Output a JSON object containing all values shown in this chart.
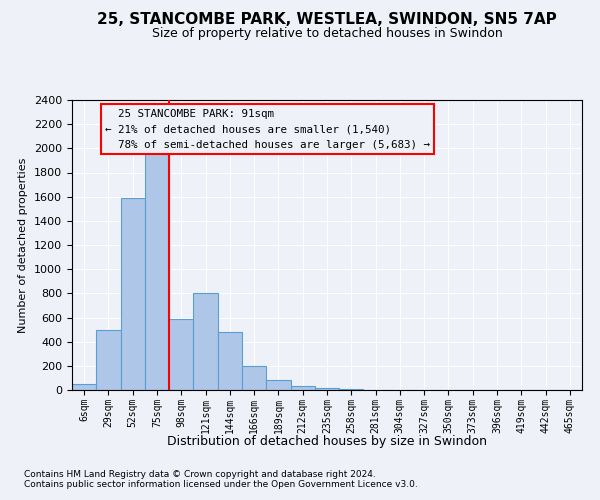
{
  "title": "25, STANCOMBE PARK, WESTLEA, SWINDON, SN5 7AP",
  "subtitle": "Size of property relative to detached houses in Swindon",
  "xlabel": "Distribution of detached houses by size in Swindon",
  "ylabel": "Number of detached properties",
  "footnote1": "Contains HM Land Registry data © Crown copyright and database right 2024.",
  "footnote2": "Contains public sector information licensed under the Open Government Licence v3.0.",
  "categories": [
    "6sqm",
    "29sqm",
    "52sqm",
    "75sqm",
    "98sqm",
    "121sqm",
    "144sqm",
    "166sqm",
    "189sqm",
    "212sqm",
    "235sqm",
    "258sqm",
    "281sqm",
    "304sqm",
    "327sqm",
    "350sqm",
    "373sqm",
    "396sqm",
    "419sqm",
    "442sqm",
    "465sqm"
  ],
  "values": [
    50,
    500,
    1590,
    1950,
    590,
    800,
    480,
    200,
    80,
    30,
    20,
    10,
    0,
    0,
    0,
    0,
    0,
    0,
    0,
    0,
    0
  ],
  "bar_color": "#aec6e8",
  "bar_edge_color": "#5a9fd4",
  "ylim": [
    0,
    2400
  ],
  "yticks": [
    0,
    200,
    400,
    600,
    800,
    1000,
    1200,
    1400,
    1600,
    1800,
    2000,
    2200,
    2400
  ],
  "property_label": "25 STANCOMBE PARK: 91sqm",
  "pct_smaller": "21%",
  "pct_smaller_count": "1,540",
  "pct_larger": "78%",
  "pct_larger_count": "5,683",
  "vline_x": 3.5,
  "background_color": "#eef2f8"
}
